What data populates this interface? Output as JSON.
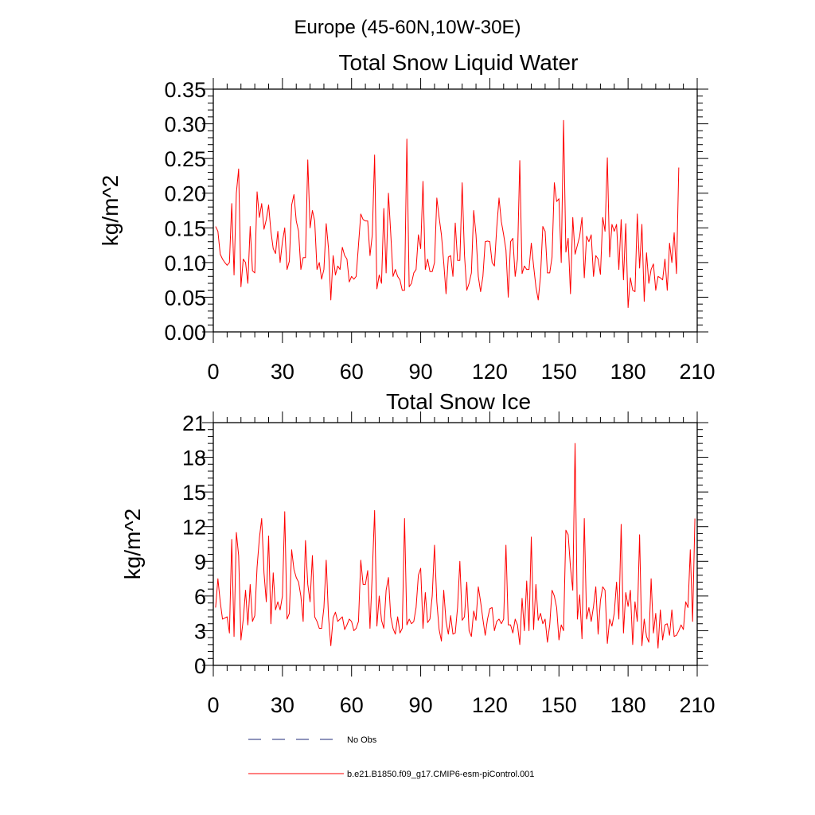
{
  "figure_title": "Europe (45-60N,10W-30E)",
  "legend": {
    "items": [
      {
        "label": "No Obs",
        "color": "#1f2a78",
        "dash": "dashed"
      },
      {
        "label": "b.e21.B1850.f09_g17.CMIP6-esm-piControl.001",
        "color": "#ff0000",
        "dash": "solid"
      }
    ]
  },
  "chart_data": [
    {
      "type": "line",
      "title": "Total Snow Liquid Water",
      "xlabel": "",
      "ylabel": "kg/m^2",
      "xlim": [
        0,
        210
      ],
      "ylim": [
        0,
        0.35
      ],
      "xticks": [
        0,
        30,
        60,
        90,
        120,
        150,
        180,
        210
      ],
      "xtick_labels": [
        "0",
        "30",
        "60",
        "90",
        "120",
        "150",
        "180",
        "210"
      ],
      "yticks": [
        0,
        0.05,
        0.1,
        0.15,
        0.2,
        0.25,
        0.3,
        0.35
      ],
      "ytick_labels": [
        "0.00",
        "0.05",
        "0.10",
        "0.15",
        "0.20",
        "0.25",
        "0.30",
        "0.35"
      ],
      "series": [
        {
          "name": "b.e21.B1850.f09_g17.CMIP6-esm-piControl.001",
          "color": "#ff0000",
          "x_start": 1,
          "values": [
            0.152,
            0.145,
            0.112,
            0.105,
            0.1,
            0.096,
            0.1,
            0.185,
            0.082,
            0.2,
            0.235,
            0.065,
            0.105,
            0.1,
            0.07,
            0.152,
            0.088,
            0.085,
            0.202,
            0.165,
            0.185,
            0.148,
            0.162,
            0.183,
            0.145,
            0.12,
            0.113,
            0.145,
            0.1,
            0.13,
            0.15,
            0.09,
            0.102,
            0.183,
            0.198,
            0.16,
            0.145,
            0.09,
            0.107,
            0.107,
            0.248,
            0.15,
            0.175,
            0.16,
            0.09,
            0.1,
            0.076,
            0.09,
            0.156,
            0.12,
            0.046,
            0.11,
            0.082,
            0.095,
            0.09,
            0.122,
            0.11,
            0.105,
            0.072,
            0.08,
            0.076,
            0.08,
            0.125,
            0.17,
            0.162,
            0.16,
            0.16,
            0.11,
            0.14,
            0.255,
            0.062,
            0.082,
            0.07,
            0.178,
            0.085,
            0.2,
            0.142,
            0.08,
            0.09,
            0.08,
            0.075,
            0.06,
            0.06,
            0.278,
            0.065,
            0.07,
            0.085,
            0.09,
            0.14,
            0.12,
            0.217,
            0.09,
            0.105,
            0.087,
            0.087,
            0.1,
            0.193,
            0.165,
            0.14,
            0.1,
            0.055,
            0.108,
            0.11,
            0.08,
            0.157,
            0.103,
            0.103,
            0.215,
            0.111,
            0.06,
            0.07,
            0.085,
            0.175,
            0.14,
            0.08,
            0.058,
            0.08,
            0.13,
            0.131,
            0.13,
            0.1,
            0.095,
            0.15,
            0.193,
            0.159,
            0.14,
            0.118,
            0.05,
            0.13,
            0.135,
            0.08,
            0.105,
            0.247,
            0.084,
            0.095,
            0.09,
            0.09,
            0.128,
            0.095,
            0.065,
            0.046,
            0.08,
            0.152,
            0.145,
            0.085,
            0.085,
            0.108,
            0.215,
            0.188,
            0.192,
            0.1,
            0.305,
            0.115,
            0.135,
            0.055,
            0.165,
            0.112,
            0.125,
            0.138,
            0.165,
            0.078,
            0.138,
            0.13,
            0.14,
            0.08,
            0.11,
            0.105,
            0.083,
            0.165,
            0.145,
            0.251,
            0.108,
            0.155,
            0.145,
            0.155,
            0.09,
            0.162,
            0.075,
            0.156,
            0.035,
            0.078,
            0.06,
            0.058,
            0.17,
            0.092,
            0.155,
            0.044,
            0.114,
            0.07,
            0.09,
            0.098,
            0.06,
            0.08,
            0.078,
            0.075,
            0.105,
            0.06,
            0.128,
            0.1,
            0.143,
            0.084,
            0.237
          ]
        }
      ]
    },
    {
      "type": "line",
      "title": "Total Snow Ice",
      "xlabel": "",
      "ylabel": "kg/m^2",
      "xlim": [
        0,
        210
      ],
      "ylim": [
        0,
        21
      ],
      "xticks": [
        0,
        30,
        60,
        90,
        120,
        150,
        180,
        210
      ],
      "xtick_labels": [
        "0",
        "30",
        "60",
        "90",
        "120",
        "150",
        "180",
        "210"
      ],
      "yticks": [
        0,
        3,
        6,
        9,
        12,
        15,
        18,
        21
      ],
      "ytick_labels": [
        "0",
        "3",
        "6",
        "9",
        "12",
        "15",
        "18",
        "21"
      ],
      "series": [
        {
          "name": "b.e21.B1850.f09_g17.CMIP6-esm-piControl.001",
          "color": "#ff0000",
          "x_start": 1,
          "values": [
            5.0,
            7.5,
            5.5,
            4.0,
            4.1,
            4.2,
            2.8,
            10.9,
            2.5,
            11.5,
            9.5,
            2.2,
            4.0,
            6.5,
            3.5,
            7.0,
            3.8,
            4.3,
            8.5,
            11.0,
            12.7,
            8.0,
            5.5,
            11.2,
            3.6,
            8.0,
            4.8,
            5.5,
            4.8,
            6.0,
            13.3,
            4.0,
            4.5,
            10.0,
            8.3,
            7.6,
            7.2,
            6.0,
            3.8,
            10.8,
            7.0,
            5.5,
            9.5,
            4.2,
            3.8,
            3.2,
            3.2,
            5.0,
            9.1,
            4.2,
            1.7,
            4.1,
            4.6,
            3.8,
            4.0,
            4.2,
            3.1,
            3.5,
            4.0,
            3.8,
            3.0,
            3.2,
            3.8,
            9.1,
            7.0,
            7.0,
            8.2,
            3.2,
            8.0,
            13.4,
            3.4,
            6.0,
            3.9,
            3.2,
            6.5,
            7.6,
            4.2,
            3.2,
            2.7,
            4.2,
            2.8,
            3.2,
            12.7,
            3.5,
            4.0,
            3.6,
            3.8,
            5.0,
            7.8,
            8.4,
            3.2,
            6.3,
            3.7,
            4.0,
            6.0,
            10.4,
            5.5,
            3.1,
            2.1,
            6.5,
            3.8,
            2.7,
            4.3,
            2.7,
            2.8,
            5.0,
            9.0,
            3.9,
            4.2,
            7.2,
            3.0,
            2.5,
            4.7,
            3.9,
            6.8,
            5.5,
            4.0,
            2.6,
            4.0,
            4.9,
            5.0,
            3.0,
            3.8,
            4.0,
            3.6,
            4.0,
            10.4,
            3.5,
            3.5,
            2.8,
            4.0,
            3.5,
            1.8,
            5.8,
            3.0,
            7.3,
            3.0,
            11.1,
            3.1,
            7.0,
            3.9,
            4.5,
            3.6,
            4.0,
            2.0,
            3.5,
            6.5,
            6.0,
            5.0,
            2.2,
            3.5,
            3.0,
            11.7,
            11.3,
            8.5,
            6.5,
            19.2,
            4.0,
            6.1,
            2.3,
            12.7,
            4.0,
            5.0,
            3.8,
            5.1,
            6.8,
            2.7,
            5.6,
            6.8,
            6.5,
            1.9,
            4.0,
            3.4,
            4.5,
            7.2,
            4.0,
            12.2,
            2.8,
            6.3,
            5.1,
            6.5,
            1.8,
            5.5,
            3.8,
            11.3,
            1.7,
            4.0,
            2.5,
            2.0,
            7.5,
            2.8,
            4.5,
            1.5,
            4.8,
            2.2,
            3.5,
            3.6,
            2.6,
            4.8,
            2.5,
            2.6,
            3.0,
            3.5,
            3.1,
            5.5,
            5.0,
            10.0,
            3.8,
            12.7
          ]
        }
      ]
    }
  ]
}
